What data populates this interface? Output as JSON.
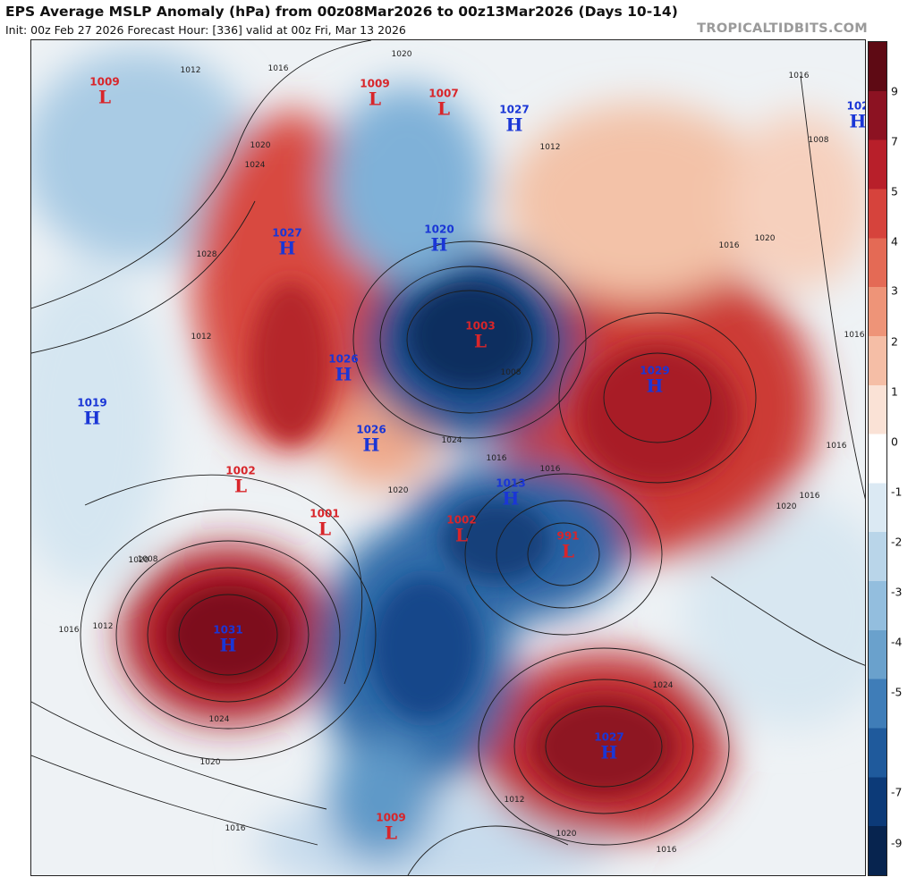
{
  "header": {
    "title": "EPS Average MSLP Anomaly (hPa) from 00z08Mar2026 to 00z13Mar2026 (Days 10-14)",
    "subtitle": "Init: 00z Feb 27 2026   Forecast Hour: [336]   valid at 00z Fri, Mar 13 2026",
    "brand": "TROPICALTIDBITS.COM"
  },
  "colorbar": {
    "ticks": [
      "9",
      "7",
      "5",
      "4",
      "3",
      "2",
      "1",
      "0",
      "-1",
      "-2",
      "-3",
      "-4",
      "-5",
      "-7",
      "-9"
    ],
    "colors": [
      "#5e0a14",
      "#8c1222",
      "#b81f2a",
      "#d6433c",
      "#e46a55",
      "#ee9478",
      "#f5bea6",
      "#fae2d6",
      "#ffffff",
      "#dbe9f3",
      "#b9d5e9",
      "#93bede",
      "#6aa1cc",
      "#3f7db8",
      "#1f5a9c",
      "#0c3a78",
      "#07244f"
    ]
  },
  "centers": [
    {
      "type": "L",
      "value": "1009"
    },
    {
      "type": "L",
      "value": "1009"
    },
    {
      "type": "L",
      "value": "1007"
    },
    {
      "type": "H",
      "value": "1027"
    },
    {
      "type": "H",
      "value": "102"
    },
    {
      "type": "H",
      "value": "1027"
    },
    {
      "type": "H",
      "value": "1020"
    },
    {
      "type": "L",
      "value": "1003"
    },
    {
      "type": "H",
      "value": "1026"
    },
    {
      "type": "H",
      "value": "1029"
    },
    {
      "type": "H",
      "value": "1019"
    },
    {
      "type": "H",
      "value": "1026"
    },
    {
      "type": "L",
      "value": "1002"
    },
    {
      "type": "H",
      "value": "1013"
    },
    {
      "type": "L",
      "value": "1001"
    },
    {
      "type": "L",
      "value": "1002"
    },
    {
      "type": "L",
      "value": "991"
    },
    {
      "type": "H",
      "value": "1031"
    },
    {
      "type": "H",
      "value": "1027"
    },
    {
      "type": "L",
      "value": "1009"
    }
  ],
  "isobar_labels": [
    "1012",
    "1016",
    "1020",
    "1024",
    "1028",
    "1008",
    "1012",
    "1020",
    "1016",
    "1024",
    "1020",
    "1012",
    "1008",
    "1016",
    "1020",
    "1024",
    "1016",
    "1020",
    "1020",
    "1016",
    "1016",
    "1024",
    "1020",
    "1016",
    "1012",
    "1016",
    "1012",
    "1008",
    "1016",
    "1020",
    "1016",
    "1016"
  ]
}
